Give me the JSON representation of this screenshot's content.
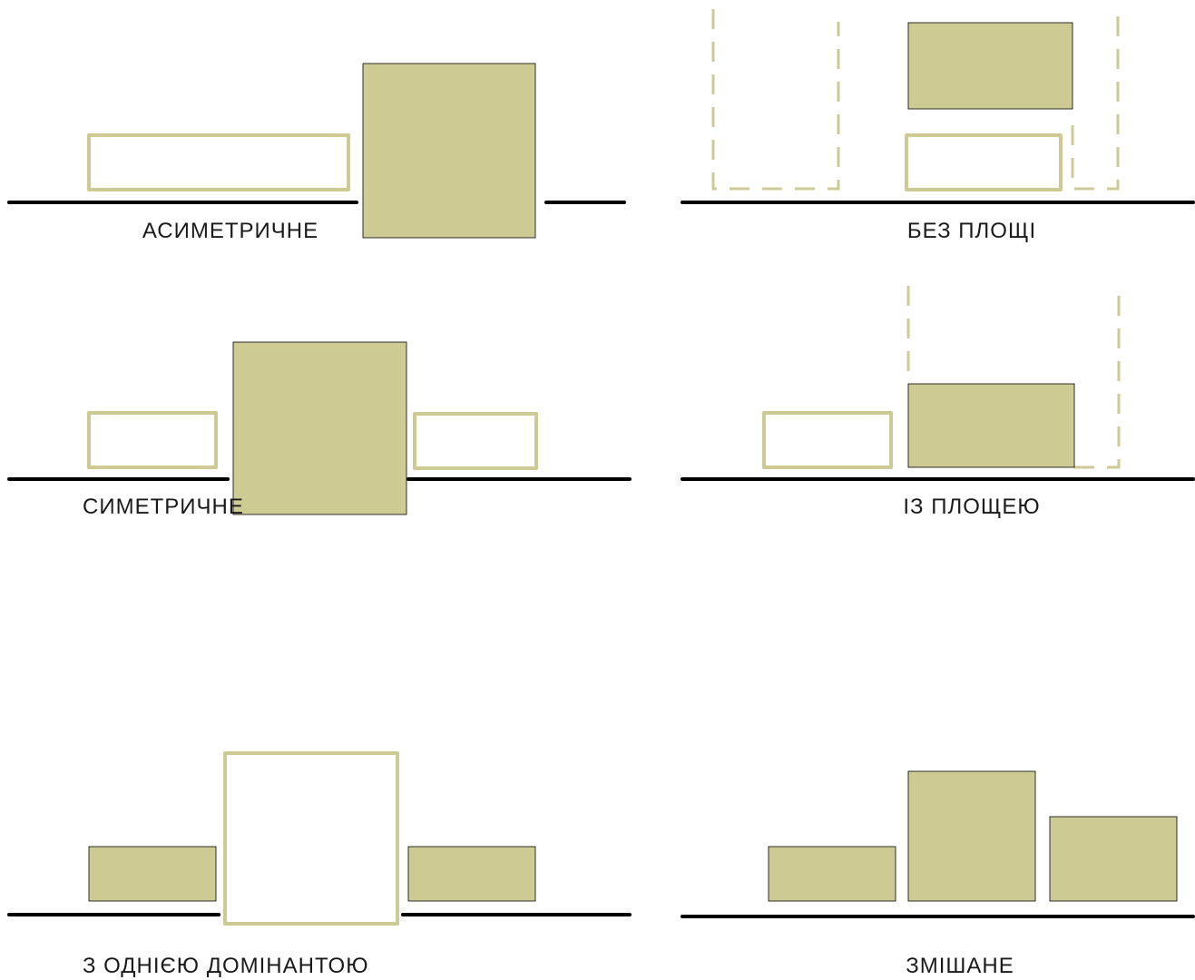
{
  "colors": {
    "block_fill": "#cdca94",
    "ground": "#000000"
  },
  "panels": {
    "asymmetric": {
      "label": "АСИМЕТРИЧНЕ"
    },
    "no_square": {
      "label": "БЕЗ ПЛОЩІ"
    },
    "symmetric": {
      "label": "СИМЕТРИЧНЕ"
    },
    "with_square": {
      "label": "ІЗ ПЛОЩЕЮ"
    },
    "one_dominant": {
      "label": "З ОДНІЄЮ ДОМІНАНТОЮ"
    },
    "mixed": {
      "label": "ЗМІШАНЕ"
    }
  }
}
